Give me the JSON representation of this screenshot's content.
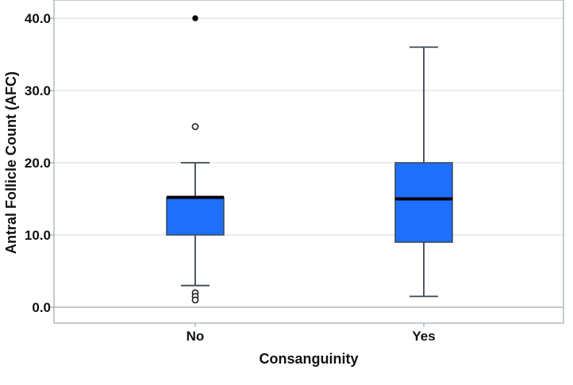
{
  "chart_data": {
    "type": "box",
    "title": "",
    "xlabel": "Consanguinity",
    "ylabel": "Antral Follicle Count (AFC)",
    "categories": [
      "No",
      "Yes"
    ],
    "ylim": [
      -2,
      42
    ],
    "yticks": [
      0,
      10,
      20,
      30,
      40
    ],
    "ytick_labels": [
      "0.0",
      "10.0",
      "20.0",
      "30.0",
      "40.0"
    ],
    "grid": true,
    "boxes": [
      {
        "category": "No",
        "whisker_low": 3,
        "q1": 10,
        "median": 15.2,
        "q3": 15.2,
        "whisker_high": 20,
        "outliers": [
          25,
          2,
          1.5,
          1
        ],
        "extremes": [
          40
        ]
      },
      {
        "category": "Yes",
        "whisker_low": 1.5,
        "q1": 9,
        "median": 15,
        "q3": 20,
        "whisker_high": 36,
        "outliers": [],
        "extremes": []
      }
    ],
    "colors": {
      "box_fill": "#1f6fff",
      "box_stroke": "#3c4650",
      "median": "#000000",
      "grid": "#d9d9d9",
      "axis": "#8a9aa3"
    }
  }
}
